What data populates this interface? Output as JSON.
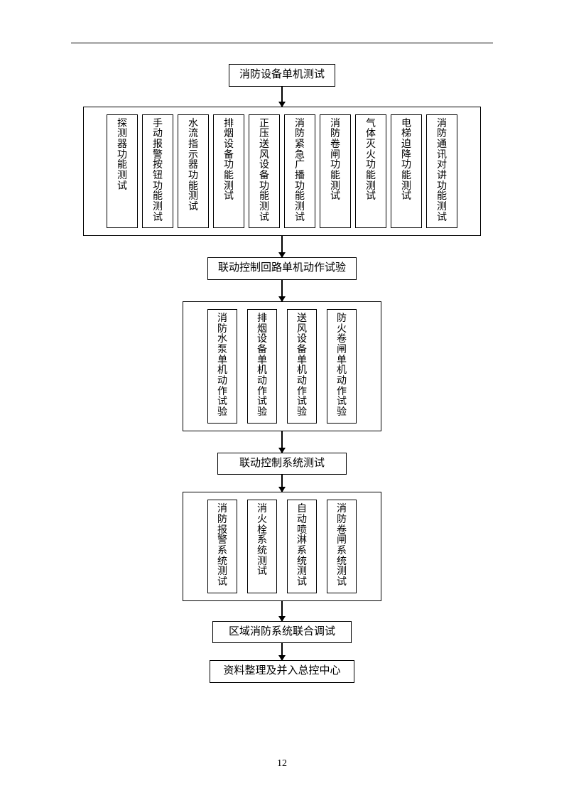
{
  "page_number": "12",
  "flowchart": {
    "type": "flowchart",
    "background_color": "#ffffff",
    "border_color": "#000000",
    "text_color": "#000000",
    "font_size_box": 15,
    "font_size_cell": 14,
    "node1": {
      "label": "消防设备单机测试"
    },
    "group1": {
      "cells": [
        "探测器功能测试",
        "手动报警按钮功能测试",
        "水流指示器功能测试",
        "排烟设备功能测试",
        "正压送风设备功能测试",
        "消防紧急广播功能测试",
        "消防卷闸功能测试",
        "气体灭火功能测试",
        "电梯迫降功能测试",
        "消防通讯对讲功能测试"
      ]
    },
    "node2": {
      "label": "联动控制回路单机动作试验"
    },
    "group2": {
      "cells": [
        "消防水泵单机动作试验",
        "排烟设备单机动作试验",
        "送风设备单机动作试验",
        "防火卷闸单机动作试验"
      ]
    },
    "node3": {
      "label": "联动控制系统测试"
    },
    "group3": {
      "cells": [
        "消防报警系统测试",
        "消火栓系统测试",
        "自动喷淋系统测试",
        "消防卷闸系统测试"
      ]
    },
    "node4": {
      "label": "区域消防系统联合调试"
    },
    "node5": {
      "label": "资料整理及并入总控中心"
    }
  }
}
